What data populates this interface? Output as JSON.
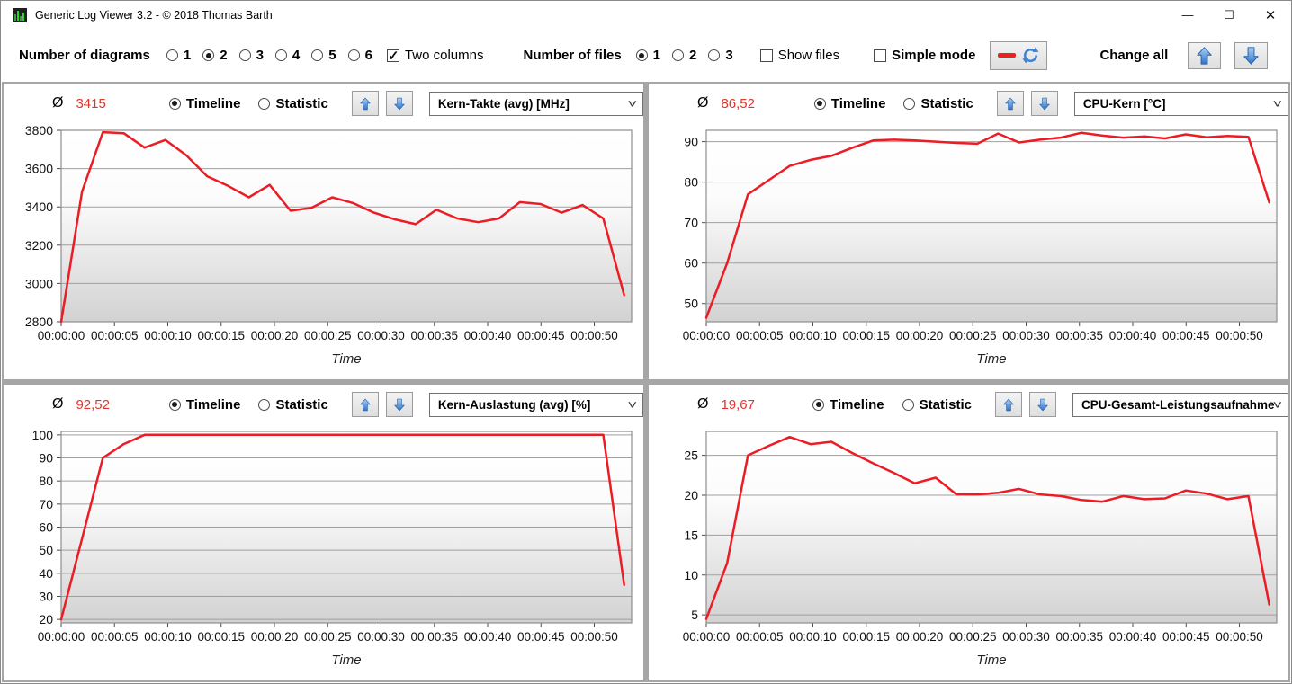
{
  "window": {
    "title": "Generic Log Viewer 3.2 - © 2018 Thomas Barth",
    "minimize_glyph": "—",
    "maximize_glyph": "☐",
    "close_glyph": "✕"
  },
  "toolbar": {
    "diagrams_label": "Number of diagrams",
    "diagram_options": [
      "1",
      "2",
      "3",
      "4",
      "5",
      "6"
    ],
    "diagram_selected": "2",
    "two_columns_label": "Two columns",
    "two_columns_checked": true,
    "files_label": "Number of files",
    "file_options": [
      "1",
      "2",
      "3"
    ],
    "file_selected": "1",
    "show_files_label": "Show files",
    "show_files_checked": false,
    "simple_mode_label": "Simple mode",
    "simple_mode_checked": false,
    "change_all_label": "Change all"
  },
  "panel_ui": {
    "avg_symbol": "Ø",
    "timeline_label": "Timeline",
    "statistic_label": "Statistic"
  },
  "colors": {
    "line_red": "#ed1c24",
    "avg_red": "#e0352b",
    "arrow_blue": "#3f83d2",
    "divider_gray": "#a6a6a6"
  },
  "charts": [
    {
      "avg": "3415",
      "metric": "Kern-Takte (avg) [MHz]",
      "chart_data": {
        "type": "line",
        "title": "Kern-Takte (avg) [MHz]",
        "xlabel": "Time",
        "ylabel": "",
        "x_tick_labels": [
          "00:00:00",
          "00:00:05",
          "00:00:10",
          "00:00:15",
          "00:00:20",
          "00:00:25",
          "00:00:30",
          "00:00:35",
          "00:00:40",
          "00:00:45",
          "00:00:50"
        ],
        "x_tick_seconds": [
          0,
          5,
          10,
          15,
          20,
          25,
          30,
          35,
          40,
          45,
          50
        ],
        "xlim": [
          0,
          53.5
        ],
        "data_end_seconds": 52.8,
        "ylim": [
          2800,
          3800
        ],
        "y_ticks": [
          2800,
          3000,
          3200,
          3400,
          3600,
          3800
        ],
        "grid": true,
        "legend": "none",
        "series": [
          {
            "name": "Kern-Takte (avg) [MHz]",
            "values": [
              2800,
              3480,
              3790,
              3785,
              3710,
              3750,
              3670,
              3560,
              3510,
              3450,
              3515,
              3380,
              3395,
              3450,
              3420,
              3370,
              3335,
              3310,
              3385,
              3340,
              3320,
              3340,
              3425,
              3415,
              3370,
              3410,
              3340,
              2940
            ]
          }
        ]
      }
    },
    {
      "avg": "86,52",
      "metric": "CPU-Kern [°C]",
      "chart_data": {
        "type": "line",
        "title": "CPU-Kern [°C]",
        "xlabel": "Time",
        "ylabel": "",
        "x_tick_labels": [
          "00:00:00",
          "00:00:05",
          "00:00:10",
          "00:00:15",
          "00:00:20",
          "00:00:25",
          "00:00:30",
          "00:00:35",
          "00:00:40",
          "00:00:45",
          "00:00:50"
        ],
        "x_tick_seconds": [
          0,
          5,
          10,
          15,
          20,
          25,
          30,
          35,
          40,
          45,
          50
        ],
        "xlim": [
          0,
          53.5
        ],
        "data_end_seconds": 52.8,
        "ylim": [
          45.5,
          92.8
        ],
        "y_ticks": [
          50,
          60,
          70,
          80,
          90
        ],
        "grid": true,
        "legend": "none",
        "series": [
          {
            "name": "CPU-Kern [°C]",
            "values": [
              46.5,
              60,
              77,
              80.5,
              84,
              85.5,
              86.5,
              88.5,
              90.3,
              90.5,
              90.3,
              90.0,
              89.7,
              89.5,
              92.0,
              89.8,
              90.5,
              91.0,
              92.2,
              91.5,
              91.0,
              91.3,
              90.8,
              91.8,
              91.1,
              91.4,
              91.2,
              75.0
            ]
          }
        ]
      }
    },
    {
      "avg": "92,52",
      "metric": "Kern-Auslastung (avg) [%]",
      "chart_data": {
        "type": "line",
        "title": "Kern-Auslastung (avg) [%]",
        "xlabel": "Time",
        "ylabel": "",
        "x_tick_labels": [
          "00:00:00",
          "00:00:05",
          "00:00:10",
          "00:00:15",
          "00:00:20",
          "00:00:25",
          "00:00:30",
          "00:00:35",
          "00:00:40",
          "00:00:45",
          "00:00:50"
        ],
        "x_tick_seconds": [
          0,
          5,
          10,
          15,
          20,
          25,
          30,
          35,
          40,
          45,
          50
        ],
        "xlim": [
          0,
          53.5
        ],
        "data_end_seconds": 52.8,
        "ylim": [
          18.5,
          101.5
        ],
        "y_ticks": [
          20,
          30,
          40,
          50,
          60,
          70,
          80,
          90,
          100
        ],
        "grid": true,
        "legend": "none",
        "series": [
          {
            "name": "Kern-Auslastung (avg) [%]",
            "values": [
              20,
              55,
              90,
              96,
              100,
              100,
              100,
              100,
              100,
              100,
              100,
              100,
              100,
              100,
              100,
              100,
              100,
              100,
              100,
              100,
              100,
              100,
              100,
              100,
              100,
              100,
              100,
              35
            ]
          }
        ]
      }
    },
    {
      "avg": "19,67",
      "metric": "CPU-Gesamt-Leistungsaufnahme [W]",
      "chart_data": {
        "type": "line",
        "title": "CPU-Gesamt-Leistungsaufnahme [W]",
        "xlabel": "Time",
        "ylabel": "",
        "x_tick_labels": [
          "00:00:00",
          "00:00:05",
          "00:00:10",
          "00:00:15",
          "00:00:20",
          "00:00:25",
          "00:00:30",
          "00:00:35",
          "00:00:40",
          "00:00:45",
          "00:00:50"
        ],
        "x_tick_seconds": [
          0,
          5,
          10,
          15,
          20,
          25,
          30,
          35,
          40,
          45,
          50
        ],
        "xlim": [
          0,
          53.5
        ],
        "data_end_seconds": 52.8,
        "ylim": [
          4,
          28
        ],
        "y_ticks": [
          5,
          10,
          15,
          20,
          25
        ],
        "grid": true,
        "legend": "none",
        "series": [
          {
            "name": "CPU-Gesamt-Leistungsaufnahme [W]",
            "values": [
              4.5,
              11.5,
              25.0,
              26.2,
              27.3,
              26.4,
              26.7,
              25.3,
              24.0,
              22.8,
              21.5,
              22.2,
              20.1,
              20.1,
              20.3,
              20.8,
              20.1,
              19.9,
              19.4,
              19.2,
              19.9,
              19.5,
              19.6,
              20.6,
              20.2,
              19.5,
              19.9,
              6.3
            ]
          }
        ]
      }
    }
  ]
}
